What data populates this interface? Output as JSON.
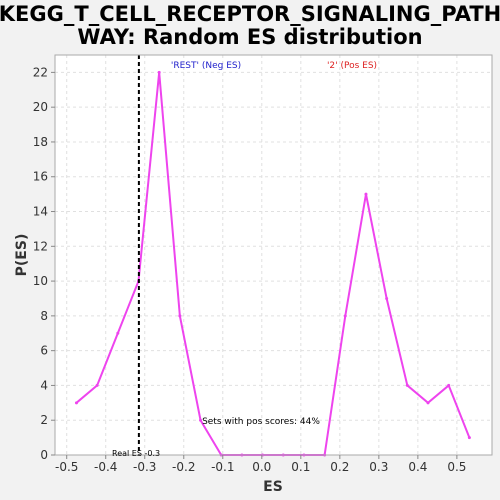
{
  "chart_data": {
    "type": "line",
    "title": "KEGG_T_CELL_RECEPTOR_SIGNALING_PATHWAY: Random ES distribution",
    "title_lines": [
      "KEGG_T_CELL_RECEPTOR_SIGNALING_PATH",
      "WAY: Random ES distribution"
    ],
    "xlabel": "ES",
    "ylabel": "P(ES)",
    "xlim": [
      -0.53,
      0.59
    ],
    "ylim": [
      0,
      23
    ],
    "x_ticks": [
      -0.5,
      -0.4,
      -0.3,
      -0.2,
      -0.1,
      0.0,
      0.1,
      0.2,
      0.3,
      0.4,
      0.5
    ],
    "x_tick_labels": [
      "-0.5",
      "-0.4",
      "-0.3",
      "-0.2",
      "-0.1",
      "0.0",
      "0.1",
      "0.2",
      "0.3",
      "0.4",
      "0.5"
    ],
    "y_ticks": [
      0,
      2,
      4,
      6,
      8,
      10,
      12,
      14,
      16,
      18,
      20,
      22
    ],
    "y_tick_labels": [
      "0",
      "2",
      "4",
      "6",
      "8",
      "10",
      "12",
      "14",
      "16",
      "18",
      "20",
      "22"
    ],
    "grid": true,
    "series": [
      {
        "color": "#ee44ee",
        "x": [
          -0.475,
          -0.422,
          -0.369,
          -0.316,
          -0.263,
          -0.21,
          -0.157,
          -0.104,
          -0.051,
          0.002,
          0.055,
          0.108,
          0.161,
          0.214,
          0.267,
          0.32,
          0.373,
          0.426,
          0.479,
          0.532
        ],
        "y": [
          3,
          4,
          7,
          10,
          22,
          8,
          2,
          0,
          0,
          0,
          0,
          0,
          0,
          8,
          15,
          9,
          4,
          3,
          4,
          1
        ]
      }
    ],
    "real_es": {
      "x": -0.315,
      "label": "Real ES -0.3",
      "color": "#000000"
    },
    "annotations": [
      {
        "text": "'REST' (Neg ES)",
        "color": "#2222cc"
      },
      {
        "text": "'2' (Pos ES)",
        "color": "#dd2222"
      },
      {
        "text": "Sets with pos scores: 44%",
        "color": "#000000"
      }
    ]
  }
}
